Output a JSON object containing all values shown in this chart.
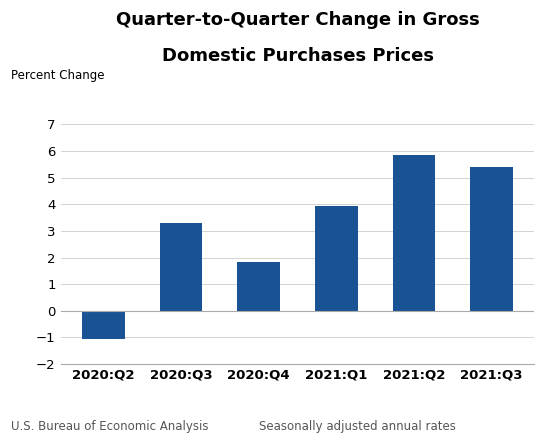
{
  "title_line1": "Quarter-to-Quarter Change in Gross",
  "title_line2": "Domestic Purchases Prices",
  "ylabel": "Percent Change",
  "categories": [
    "2020:Q2",
    "2020:Q3",
    "2020:Q4",
    "2021:Q1",
    "2021:Q2",
    "2021:Q3"
  ],
  "values": [
    -1.05,
    3.3,
    1.85,
    3.95,
    5.85,
    5.4
  ],
  "bar_color": "#1a5394",
  "ylim": [
    -2,
    7
  ],
  "yticks": [
    -2,
    -1,
    0,
    1,
    2,
    3,
    4,
    5,
    6,
    7
  ],
  "footer_left": "U.S. Bureau of Economic Analysis",
  "footer_right": "Seasonally adjusted annual rates",
  "title_fontsize": 13,
  "ylabel_fontsize": 8.5,
  "tick_fontsize": 9.5,
  "footer_fontsize": 8.5,
  "background_color": "#ffffff"
}
